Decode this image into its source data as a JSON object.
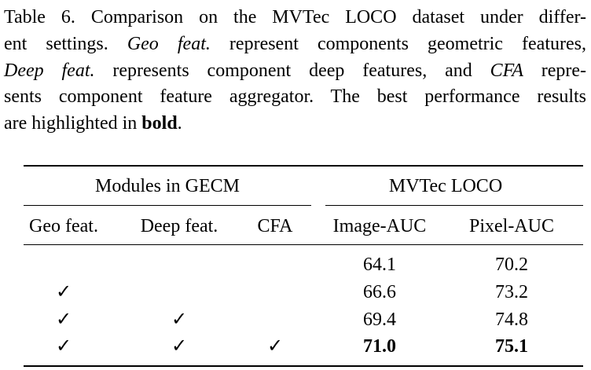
{
  "caption": [
    [
      {
        "text": "Table 6. Comparison on the MVTec LOCO dataset under differ-"
      }
    ],
    [
      {
        "text": "ent settings. "
      },
      {
        "text": "Geo feat.",
        "italic": true
      },
      {
        "text": " represent components geometric features,"
      }
    ],
    [
      {
        "text": "Deep feat.",
        "italic": true
      },
      {
        "text": " represents component deep features, and "
      },
      {
        "text": "CFA",
        "italic": true
      },
      {
        "text": " repre-"
      }
    ],
    [
      {
        "text": "sents component feature aggregator. The best performance results"
      }
    ],
    [
      {
        "text": "are highlighted in "
      },
      {
        "text": "bold",
        "bold": true
      },
      {
        "text": "."
      }
    ]
  ],
  "table": {
    "groups": [
      {
        "label": "Modules in GECM",
        "span": 3
      },
      {
        "label": "MVTec LOCO",
        "span": 2
      }
    ],
    "columns": [
      "Geo feat.",
      "Deep feat.",
      "CFA",
      "Image-AUC",
      "Pixel-AUC"
    ],
    "rows": [
      {
        "cells": [
          null,
          null,
          null,
          "64.1",
          "70.2"
        ]
      },
      {
        "cells": [
          "✓",
          null,
          null,
          "66.6",
          "73.2"
        ]
      },
      {
        "cells": [
          "✓",
          "✓",
          null,
          "69.4",
          "74.8"
        ]
      },
      {
        "cells": [
          "✓",
          "✓",
          "✓",
          "71.0",
          "75.1"
        ],
        "bold": true
      }
    ]
  }
}
